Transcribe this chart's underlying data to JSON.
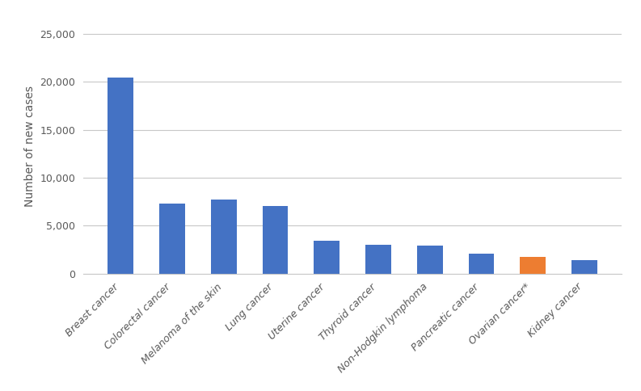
{
  "categories": [
    "Breast cancer",
    "Colorectal cancer",
    "Melanoma of the skin",
    "Lung cancer",
    "Uterine cancer",
    "Thyroid cancer",
    "Non-Hodgkin lymphoma",
    "Pancreatic cancer",
    "Ovarian cancer*",
    "Kidney cancer"
  ],
  "values": [
    20470,
    7350,
    7750,
    7100,
    3450,
    3000,
    2900,
    2100,
    1750,
    1450
  ],
  "bar_colors": [
    "#4472C4",
    "#4472C4",
    "#4472C4",
    "#4472C4",
    "#4472C4",
    "#4472C4",
    "#4472C4",
    "#4472C4",
    "#ED7D31",
    "#4472C4"
  ],
  "ylabel": "Number of new cases",
  "ylim": [
    0,
    26500
  ],
  "yticks": [
    0,
    5000,
    10000,
    15000,
    20000,
    25000
  ],
  "background_color": "#ffffff",
  "grid_color": "#c8c8c8",
  "bar_width": 0.5,
  "ylabel_fontsize": 10,
  "tick_fontsize": 9,
  "xlabel_rotation": 45,
  "xlabel_ha": "right"
}
